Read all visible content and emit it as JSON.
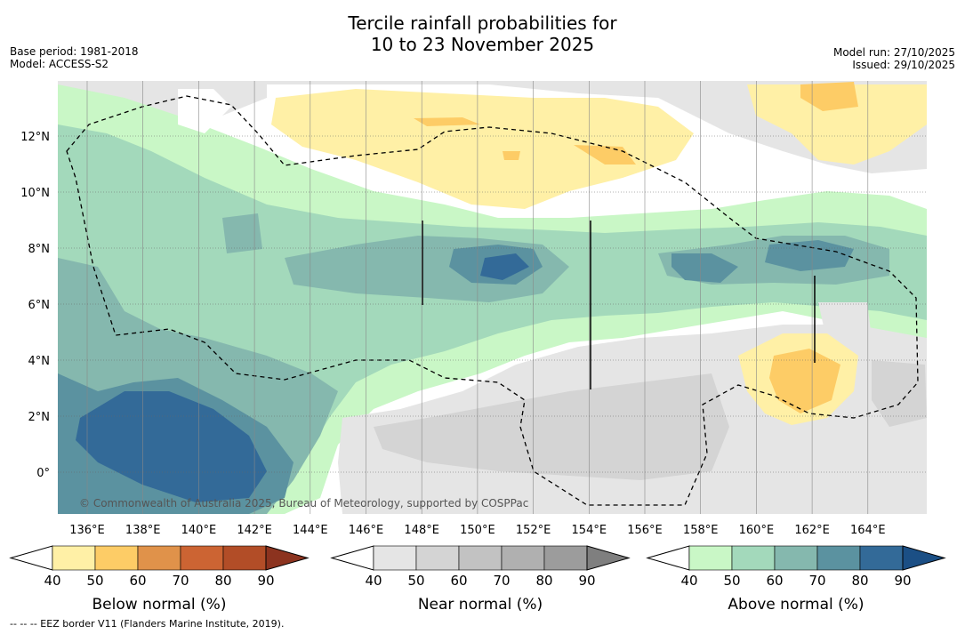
{
  "title": {
    "line1": "Tercile rainfall probabilities for",
    "line2": "10 to 23 November 2025"
  },
  "meta_left": {
    "base_period": "Base period: 1981-2018",
    "model": "Model: ACCESS-S2"
  },
  "meta_right": {
    "model_run": "Model run: 27/10/2025",
    "issued": "Issued: 29/10/2025"
  },
  "map": {
    "lon_ticks": [
      "136°E",
      "138°E",
      "140°E",
      "142°E",
      "144°E",
      "146°E",
      "148°E",
      "150°E",
      "152°E",
      "154°E",
      "156°E",
      "158°E",
      "160°E",
      "162°E",
      "164°E"
    ],
    "lat_ticks": [
      "12°N",
      "10°N",
      "8°N",
      "6°N",
      "4°N",
      "2°N",
      "0°"
    ],
    "copyright": "© Commonwealth of Australia 2025, Bureau of Meteorology, supported by COSPPac",
    "colors": {
      "ocean": "#ffffff",
      "above": [
        "#c9f7c6",
        "#a3d9bb",
        "#85b8ae",
        "#5b92a0",
        "#336a98",
        "#1b4f85"
      ],
      "near": [
        "#e5e5e5",
        "#d4d4d4",
        "#c2c2c2",
        "#b0b0b0",
        "#9c9c9c",
        "#7f7f7f"
      ],
      "below": [
        "#fff0a6",
        "#fdcc66",
        "#e0924a",
        "#cc6433",
        "#b24d27",
        "#8c331f"
      ]
    }
  },
  "colorbars": [
    {
      "name": "below",
      "label": "Below normal (%)",
      "ticks": [
        "40",
        "50",
        "60",
        "70",
        "80",
        "90"
      ],
      "colors": [
        "#fff0a6",
        "#fdcc66",
        "#e0924a",
        "#cc6433",
        "#b24d27"
      ],
      "extend_color": "#8c331f"
    },
    {
      "name": "near",
      "label": "Near normal (%)",
      "ticks": [
        "40",
        "50",
        "60",
        "70",
        "80",
        "90"
      ],
      "colors": [
        "#e5e5e5",
        "#d4d4d4",
        "#c2c2c2",
        "#b0b0b0",
        "#9c9c9c"
      ],
      "extend_color": "#7f7f7f"
    },
    {
      "name": "above",
      "label": "Above normal (%)",
      "ticks": [
        "40",
        "50",
        "60",
        "70",
        "80",
        "90"
      ],
      "colors": [
        "#c9f7c6",
        "#a3d9bb",
        "#85b8ae",
        "#5b92a0",
        "#336a98"
      ],
      "extend_color": "#1b4f85"
    }
  ],
  "footnote": "--  --  -- EEZ border V11 (Flanders Marine Institute, 2019)."
}
